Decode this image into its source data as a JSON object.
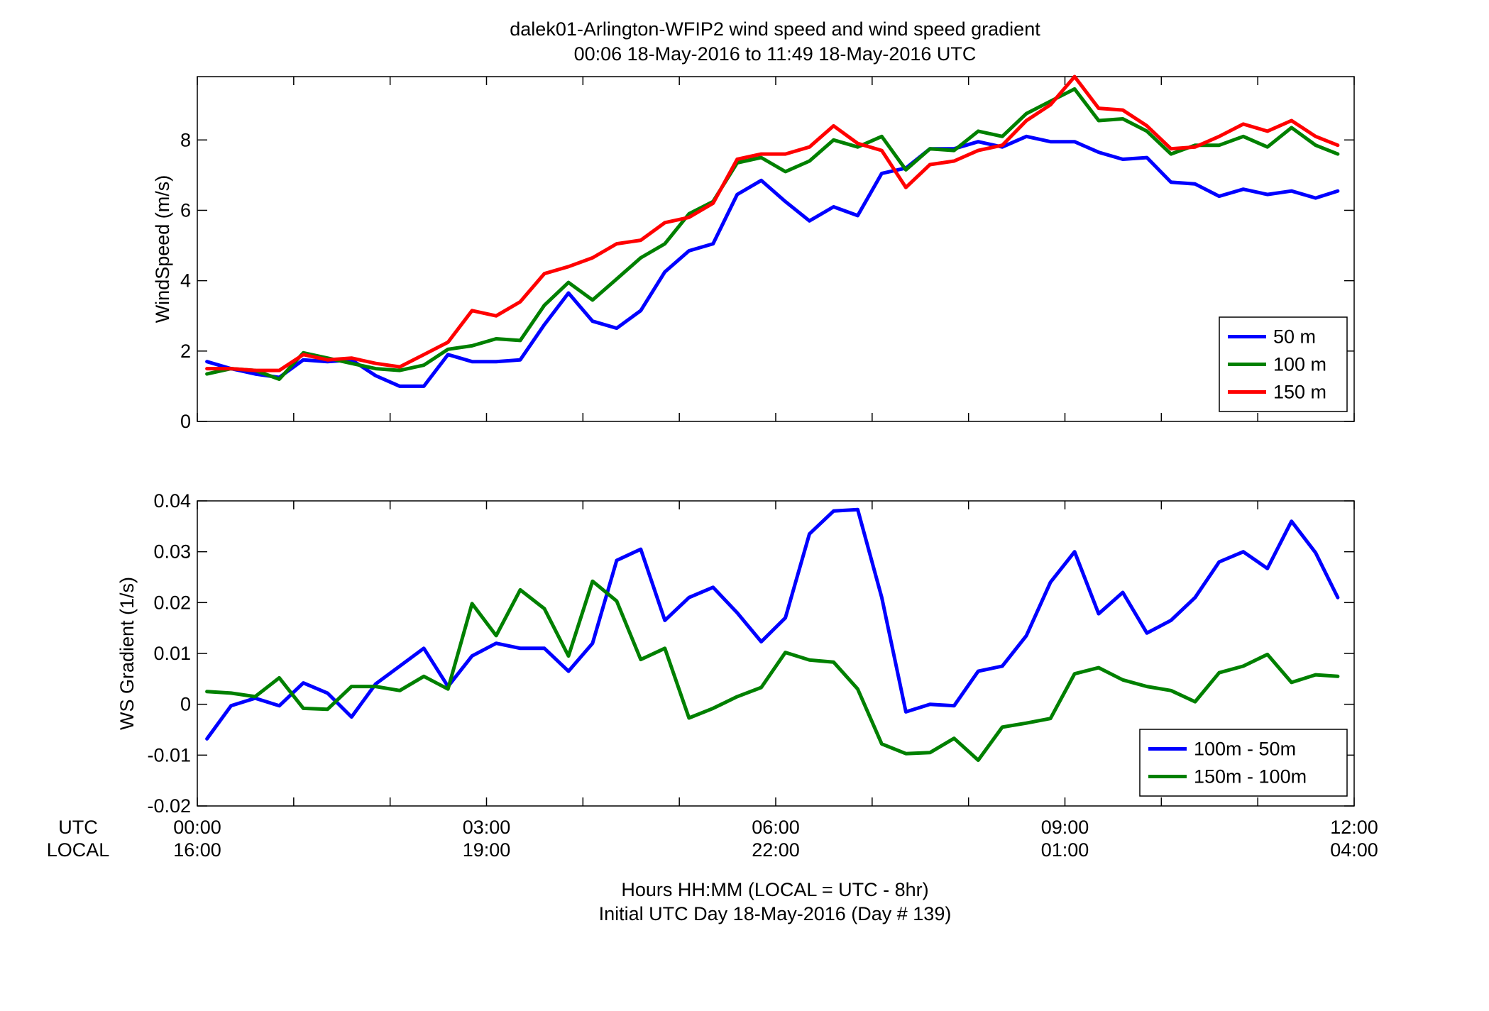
{
  "figure": {
    "title_line1": "dalek01-Arlington-WFIP2  wind speed and wind speed gradient",
    "title_line2": "00:06 18-May-2016 to 11:49 18-May-2016  UTC",
    "xlabel_line1": "Hours HH:MM  (LOCAL = UTC - 8hr)",
    "xlabel_line2": "Initial UTC Day 18-May-2016 (Day # 139)",
    "utc_label": "UTC",
    "local_label": "LOCAL",
    "utc_ticks": [
      "00:00",
      "03:00",
      "06:00",
      "09:00",
      "12:00"
    ],
    "local_ticks": [
      "16:00",
      "19:00",
      "22:00",
      "01:00",
      "04:00"
    ]
  },
  "chart_data": [
    {
      "type": "line",
      "ylabel": "WindSpeed (m/s)",
      "xlim": [
        0,
        12
      ],
      "ylim": [
        0,
        9.8
      ],
      "yticks": [
        0,
        2,
        4,
        6,
        8
      ],
      "ytick_labels": [
        "0",
        "2",
        "4",
        "6",
        "8"
      ],
      "x": [
        0.1,
        0.35,
        0.6,
        0.85,
        1.1,
        1.35,
        1.6,
        1.85,
        2.1,
        2.35,
        2.6,
        2.85,
        3.1,
        3.35,
        3.6,
        3.85,
        4.1,
        4.35,
        4.6,
        4.85,
        5.1,
        5.35,
        5.6,
        5.85,
        6.1,
        6.35,
        6.6,
        6.85,
        7.1,
        7.35,
        7.6,
        7.85,
        8.1,
        8.35,
        8.6,
        8.85,
        9.1,
        9.35,
        9.6,
        9.85,
        10.1,
        10.35,
        10.6,
        10.85,
        11.1,
        11.35,
        11.6,
        11.83
      ],
      "legend_position": "lower-right",
      "series": [
        {
          "name": "50 m",
          "color": "#0000ff",
          "values": [
            1.7,
            1.5,
            1.35,
            1.25,
            1.75,
            1.7,
            1.75,
            1.3,
            1.0,
            1.0,
            1.9,
            1.7,
            1.7,
            1.75,
            2.75,
            3.65,
            2.85,
            2.65,
            3.15,
            4.25,
            4.85,
            5.05,
            6.45,
            6.85,
            6.25,
            5.7,
            6.1,
            5.85,
            7.05,
            7.2,
            7.75,
            7.75,
            7.95,
            7.8,
            8.1,
            7.95,
            7.95,
            7.65,
            7.45,
            7.5,
            6.8,
            6.75,
            6.4,
            6.6,
            6.45,
            6.55,
            6.35,
            6.55
          ]
        },
        {
          "name": "100 m",
          "color": "#008000",
          "values": [
            1.35,
            1.5,
            1.45,
            1.2,
            1.95,
            1.8,
            1.65,
            1.5,
            1.45,
            1.6,
            2.05,
            2.15,
            2.35,
            2.3,
            3.3,
            3.95,
            3.45,
            4.05,
            4.65,
            5.05,
            5.9,
            6.25,
            7.35,
            7.5,
            7.1,
            7.4,
            8.0,
            7.8,
            8.1,
            7.15,
            7.75,
            7.7,
            8.25,
            8.1,
            8.75,
            9.1,
            9.45,
            8.55,
            8.6,
            8.25,
            7.6,
            7.85,
            7.85,
            8.1,
            7.8,
            8.35,
            7.85,
            7.6
          ]
        },
        {
          "name": "150 m",
          "color": "#ff0000",
          "values": [
            1.5,
            1.5,
            1.45,
            1.45,
            1.9,
            1.75,
            1.8,
            1.65,
            1.55,
            1.9,
            2.25,
            3.15,
            3.0,
            3.4,
            4.2,
            4.4,
            4.65,
            5.05,
            5.15,
            5.65,
            5.8,
            6.2,
            7.45,
            7.6,
            7.6,
            7.8,
            8.4,
            7.9,
            7.7,
            6.65,
            7.3,
            7.4,
            7.7,
            7.85,
            8.55,
            9.0,
            9.8,
            8.9,
            8.85,
            8.4,
            7.75,
            7.8,
            8.1,
            8.45,
            8.25,
            8.55,
            8.1,
            7.85
          ]
        }
      ]
    },
    {
      "type": "line",
      "ylabel": "WS Gradient (1/s)",
      "xlim": [
        0,
        12
      ],
      "ylim": [
        -0.02,
        0.04
      ],
      "yticks": [
        -0.02,
        -0.01,
        0,
        0.01,
        0.02,
        0.03,
        0.04
      ],
      "ytick_labels": [
        "-0.02",
        "-0.01",
        "0",
        "0.01",
        "0.02",
        "0.03",
        "0.04"
      ],
      "x": [
        0.1,
        0.35,
        0.6,
        0.85,
        1.1,
        1.35,
        1.6,
        1.85,
        2.1,
        2.35,
        2.6,
        2.85,
        3.1,
        3.35,
        3.6,
        3.85,
        4.1,
        4.35,
        4.6,
        4.85,
        5.1,
        5.35,
        5.6,
        5.85,
        6.1,
        6.35,
        6.6,
        6.85,
        7.1,
        7.35,
        7.6,
        7.85,
        8.1,
        8.35,
        8.6,
        8.85,
        9.1,
        9.35,
        9.6,
        9.85,
        10.1,
        10.35,
        10.6,
        10.85,
        11.1,
        11.35,
        11.6,
        11.83
      ],
      "legend_position": "lower-right",
      "series": [
        {
          "name": "100m - 50m",
          "color": "#0000ff",
          "values": [
            -0.0068,
            -0.0003,
            0.0012,
            -0.0003,
            0.0042,
            0.0022,
            -0.0025,
            0.004,
            0.0075,
            0.011,
            0.0035,
            0.0095,
            0.012,
            0.011,
            0.011,
            0.0065,
            0.012,
            0.0283,
            0.0305,
            0.0165,
            0.021,
            0.023,
            0.018,
            0.0123,
            0.017,
            0.0335,
            0.038,
            0.0383,
            0.021,
            -0.0015,
            0.0,
            -0.0003,
            0.0065,
            0.0075,
            0.0135,
            0.024,
            0.03,
            0.0178,
            0.022,
            0.014,
            0.0165,
            0.021,
            0.028,
            0.03,
            0.0267,
            0.036,
            0.0298,
            0.021
          ]
        },
        {
          "name": "150m - 100m",
          "color": "#008000",
          "values": [
            0.0025,
            0.0022,
            0.0015,
            0.0052,
            -0.0008,
            -0.001,
            0.0035,
            0.0035,
            0.0027,
            0.0055,
            0.003,
            0.0198,
            0.0135,
            0.0225,
            0.0188,
            0.0095,
            0.0242,
            0.0203,
            0.0088,
            0.011,
            -0.0027,
            -0.0008,
            0.0015,
            0.0033,
            0.0102,
            0.0087,
            0.0083,
            0.003,
            -0.0078,
            -0.0097,
            -0.0095,
            -0.0067,
            -0.011,
            -0.0045,
            -0.0037,
            -0.0028,
            0.006,
            0.0072,
            0.0048,
            0.0035,
            0.0027,
            0.0005,
            0.0062,
            0.0075,
            0.0098,
            0.0043,
            0.0058,
            0.0055
          ]
        }
      ]
    }
  ]
}
